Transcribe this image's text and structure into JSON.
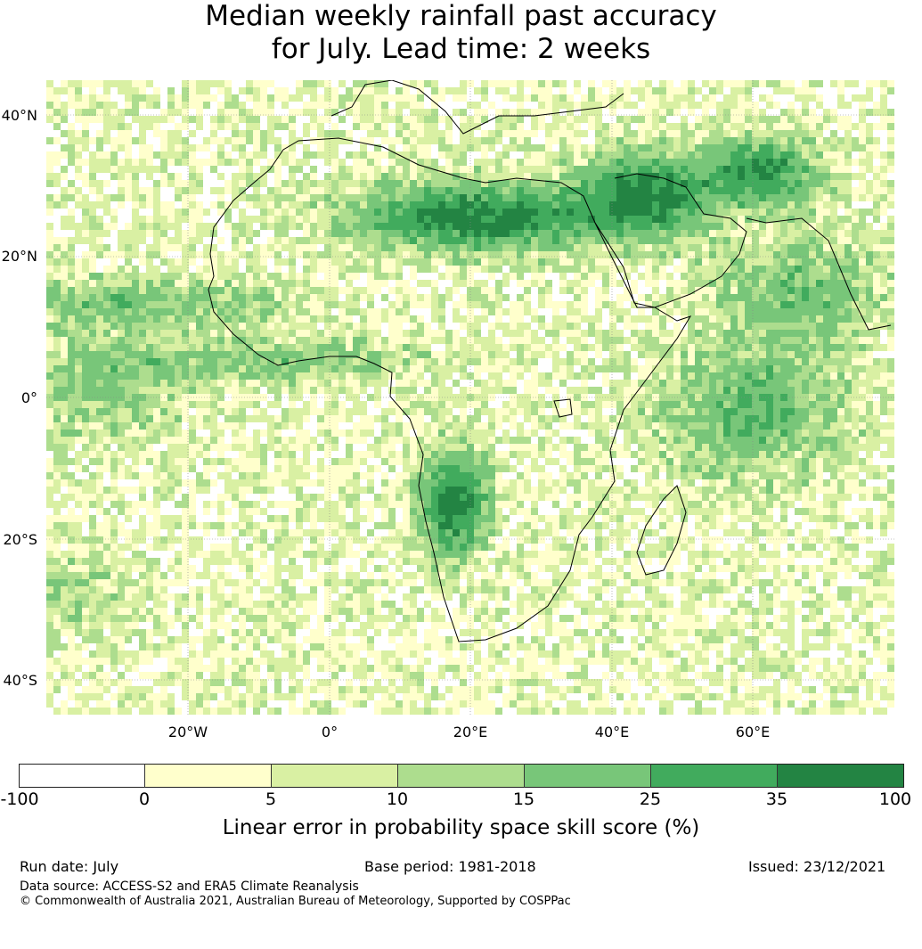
{
  "title": {
    "line1": "Median weekly rainfall past accuracy",
    "line2": "for July. Lead time: 2 weeks"
  },
  "map": {
    "lat_labels": [
      "40°N",
      "20°N",
      "0°",
      "20°S",
      "40°S"
    ],
    "lon_labels": [
      "20°W",
      "0°",
      "20°E",
      "40°E",
      "60°E"
    ],
    "extent": {
      "lon_min": -40,
      "lon_max": 80,
      "lat_min": -45,
      "lat_max": 45
    },
    "gridlines": true
  },
  "legend": {
    "ticks": [
      "-100",
      "0",
      "5",
      "10",
      "15",
      "25",
      "35",
      "100"
    ],
    "colors": [
      "#ffffff",
      "#ffffcc",
      "#d9f0a3",
      "#addd8e",
      "#78c679",
      "#41ab5d",
      "#238443"
    ],
    "label": "Linear error in probability space skill score (%)"
  },
  "footer": {
    "run_date": "Run date: July",
    "base_period": "Base period: 1981-2018",
    "issued": "Issued: 23/12/2021",
    "data_source": "Data source: ACCESS-S2 and ERA5 Climate Reanalysis",
    "copyright": "© Commonwealth of Australia 2021, Australian Bureau of Meteorology, Supported by COSPPac"
  }
}
